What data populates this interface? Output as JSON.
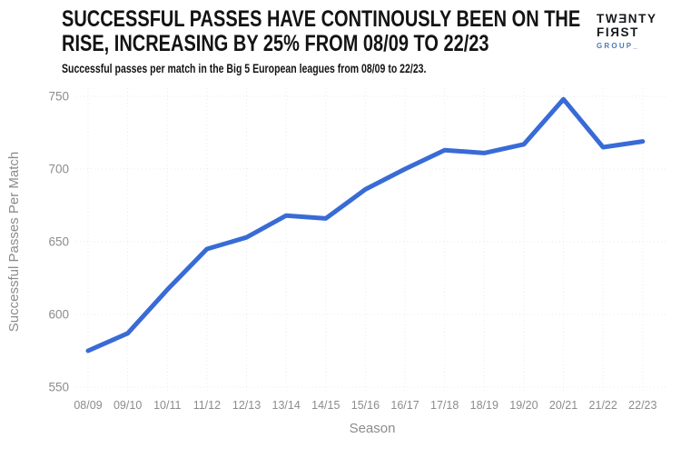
{
  "header": {
    "title_lines": [
      "SUCCESSFUL PASSES HAVE CONTINOUSLY BEEN ON THE",
      "RISE, INCREASING BY 25% FROM 08/09 TO 22/23"
    ],
    "subtitle": "Successful passes per match in the Big 5 European leagues from 08/09 to 22/23."
  },
  "logo": {
    "line1": "TWƎNTY",
    "line2": "FIЯST",
    "line3": "GROUP_",
    "accent_color": "#4e7ab5",
    "text_color": "#16181c"
  },
  "chart_data": {
    "type": "line",
    "title": "SUCCESSFUL PASSES HAVE CONTINOUSLY BEEN ON THE RISE, INCREASING BY 25% FROM 08/09 TO 22/23",
    "subtitle": "Successful passes per match in the Big 5 European leagues from 08/09 to 22/23.",
    "categories": [
      "08/09",
      "09/10",
      "10/11",
      "11/12",
      "12/13",
      "13/14",
      "14/15",
      "15/16",
      "16/17",
      "17/18",
      "18/19",
      "19/20",
      "20/21",
      "21/22",
      "22/23"
    ],
    "values": [
      575,
      587,
      617,
      645,
      653,
      668,
      666,
      686,
      700,
      713,
      711,
      717,
      748,
      715,
      719
    ],
    "xlabel": "Season",
    "ylabel": "Successful Passes Per Match",
    "ylim": [
      550,
      750
    ],
    "yticks": [
      550,
      600,
      650,
      700,
      750
    ],
    "line_color": "#386bd6",
    "grid_color": "#eaeaea",
    "tick_color": "#8c8c8c",
    "axis_title_color": "#8c8c8c",
    "legend": "none",
    "grid": true
  }
}
